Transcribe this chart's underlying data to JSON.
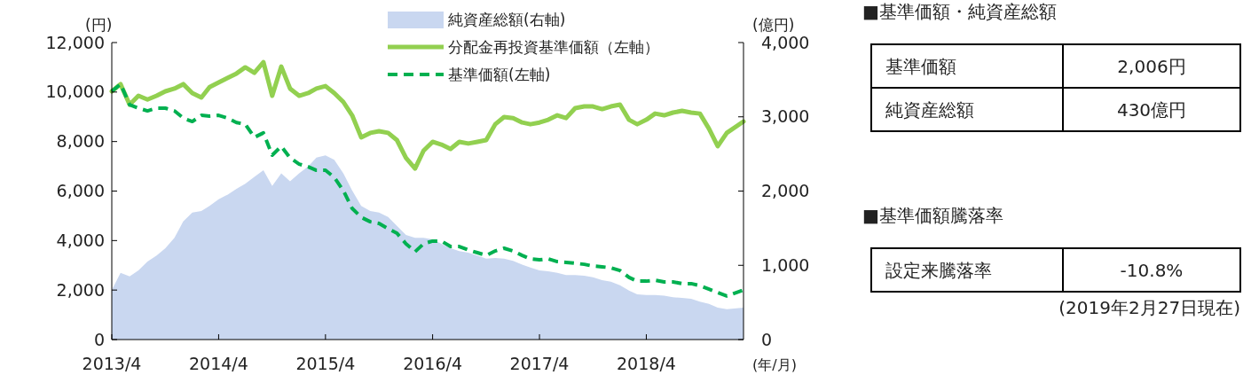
{
  "chart_data": [
    {
      "type": "line",
      "xlabel": "(年/月)",
      "ylabel": "(円)",
      "y2label": "(億円)",
      "legend": "top right",
      "x": [
        "2013-04",
        "2013-05",
        "2013-06",
        "2013-07",
        "2013-08",
        "2013-09",
        "2013-10",
        "2013-11",
        "2013-12",
        "2014-01",
        "2014-02",
        "2014-03",
        "2014-04",
        "2014-05",
        "2014-06",
        "2014-07",
        "2014-08",
        "2014-09",
        "2014-10",
        "2014-11",
        "2014-12",
        "2015-01",
        "2015-02",
        "2015-03",
        "2015-04",
        "2015-05",
        "2015-06",
        "2015-07",
        "2015-08",
        "2015-09",
        "2015-10",
        "2015-11",
        "2015-12",
        "2016-01",
        "2016-02",
        "2016-03",
        "2016-04",
        "2016-05",
        "2016-06",
        "2016-07",
        "2016-08",
        "2016-09",
        "2016-10",
        "2016-11",
        "2016-12",
        "2017-01",
        "2017-02",
        "2017-03",
        "2017-04",
        "2017-05",
        "2017-06",
        "2017-07",
        "2017-08",
        "2017-09",
        "2017-10",
        "2017-11",
        "2017-12",
        "2018-01",
        "2018-02",
        "2018-03",
        "2018-04",
        "2018-05",
        "2018-06",
        "2018-07",
        "2018-08",
        "2018-09",
        "2018-10",
        "2018-11",
        "2018-12",
        "2019-01",
        "2019-02-27"
      ],
      "xlim": [
        "2013-04",
        "2019-02-27"
      ],
      "xticks": [
        {
          "value": "2013-04",
          "label": "2013/4"
        },
        {
          "value": "2014-04",
          "label": "2014/4"
        },
        {
          "value": "2015-04",
          "label": "2015/4"
        },
        {
          "value": "2016-04",
          "label": "2016/4"
        },
        {
          "value": "2017-04",
          "label": "2017/4"
        },
        {
          "value": "2018-04",
          "label": "2018/4"
        }
      ],
      "ylim": [
        0,
        12000
      ],
      "yticks": [
        0,
        {
          "value": 2000,
          "label": "2,000"
        },
        {
          "value": 4000,
          "label": "4,000"
        },
        {
          "value": 6000,
          "label": "6,000"
        },
        {
          "value": 8000,
          "label": "8,000"
        },
        {
          "value": 10000,
          "label": "10,000"
        },
        {
          "value": 12000,
          "label": "12,000"
        }
      ],
      "y2lim": [
        0,
        4000
      ],
      "y2ticks": [
        0,
        {
          "value": 1000,
          "label": "1,000"
        },
        {
          "value": 2000,
          "label": "2,000"
        },
        {
          "value": 3000,
          "label": "3,000"
        },
        {
          "value": 4000,
          "label": "4,000"
        }
      ],
      "series": [
        {
          "name": "純資産総額(右軸)",
          "type": "area",
          "axis": "y2",
          "color": "#c9d7f0",
          "values": [
            670,
            900,
            850,
            930,
            1050,
            1130,
            1230,
            1370,
            1590,
            1710,
            1730,
            1800,
            1890,
            1950,
            2030,
            2100,
            2190,
            2280,
            2070,
            2240,
            2130,
            2240,
            2330,
            2450,
            2480,
            2420,
            2240,
            2010,
            1800,
            1730,
            1710,
            1650,
            1530,
            1410,
            1370,
            1370,
            1350,
            1290,
            1230,
            1190,
            1170,
            1130,
            1090,
            1100,
            1090,
            1060,
            1010,
            970,
            930,
            920,
            900,
            870,
            870,
            860,
            840,
            800,
            780,
            730,
            660,
            610,
            600,
            600,
            590,
            570,
            560,
            550,
            510,
            480,
            430,
            410,
            430
          ]
        },
        {
          "name": "分配金再投資基準価額（左軸）",
          "type": "line",
          "axis": "y",
          "line_style": "solid",
          "color": "#92d050",
          "values": [
            10030,
            10320,
            9490,
            9850,
            9700,
            9850,
            10030,
            10140,
            10320,
            9960,
            9780,
            10200,
            10390,
            10570,
            10750,
            11000,
            10780,
            11210,
            9850,
            11030,
            10140,
            9850,
            9960,
            10140,
            10240,
            9960,
            9600,
            9060,
            8170,
            8350,
            8420,
            8350,
            8060,
            7340,
            6910,
            7630,
            7990,
            7880,
            7700,
            7990,
            7920,
            7990,
            8060,
            8700,
            8990,
            8950,
            8770,
            8700,
            8770,
            8880,
            9060,
            8950,
            9350,
            9420,
            9420,
            9310,
            9420,
            9490,
            8880,
            8700,
            8880,
            9130,
            9060,
            9170,
            9240,
            9170,
            9130,
            8520,
            7810,
            8350,
            8810
          ]
        },
        {
          "name": "基準価額(左軸)",
          "type": "line",
          "axis": "y",
          "line_style": "dashed",
          "color": "#00b050",
          "values": [
            10030,
            10320,
            9490,
            9350,
            9240,
            9350,
            9350,
            9240,
            8950,
            8810,
            9060,
            9030,
            9060,
            8950,
            8770,
            8700,
            8170,
            8350,
            7450,
            7810,
            7340,
            7090,
            6980,
            6840,
            6840,
            6550,
            6020,
            5300,
            4940,
            4760,
            4690,
            4480,
            4300,
            3870,
            3550,
            3870,
            3980,
            3980,
            3760,
            3760,
            3620,
            3510,
            3400,
            3580,
            3690,
            3580,
            3400,
            3260,
            3220,
            3260,
            3150,
            3120,
            3080,
            3040,
            2970,
            2940,
            2900,
            2790,
            2510,
            2360,
            2360,
            2400,
            2330,
            2330,
            2260,
            2260,
            2180,
            2040,
            1900,
            1760,
            2006
          ]
        }
      ]
    },
    {
      "type": "other",
      "title": "■基準価額・純資産総額",
      "categories": [
        "基準価額",
        "純資産総額"
      ],
      "value_labels": [
        "2,006円",
        "430億円"
      ]
    },
    {
      "type": "other",
      "title": "■基準価額騰落率",
      "categories": [
        "設定来騰落率"
      ],
      "value_labels": [
        "-10.8%"
      ],
      "annotations": [
        "(2019年2月27日現在)"
      ]
    }
  ]
}
